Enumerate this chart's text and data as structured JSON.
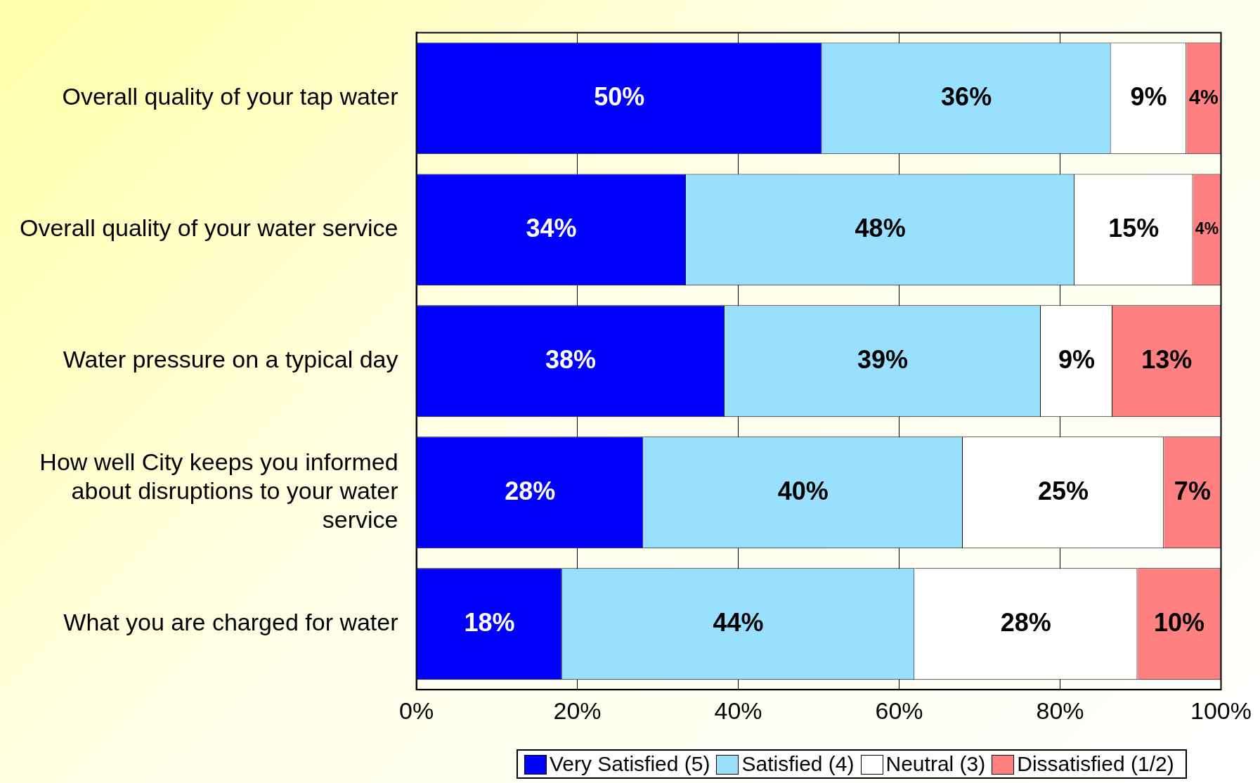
{
  "chart_data": {
    "type": "bar",
    "orientation": "horizontal",
    "stacked": true,
    "categories": [
      "Overall quality of your tap water",
      "Overall quality of your water service",
      "Water pressure on a typical day",
      "How well City keeps you informed about disruptions to your water service",
      "What you are charged for water"
    ],
    "series": [
      {
        "name": "Very Satisfied (5)",
        "color": "#0000ff",
        "values": [
          50.4,
          33.5,
          38.3,
          28.2,
          18.1
        ],
        "value_labels": [
          "50%",
          "34%",
          "38%",
          "28%",
          "18%"
        ]
      },
      {
        "name": "Satisfied (4)",
        "color": "#99e0ff",
        "values": [
          35.9,
          48.3,
          39.3,
          39.7,
          43.8
        ],
        "value_labels": [
          "36%",
          "48%",
          "39%",
          "40%",
          "44%"
        ]
      },
      {
        "name": "Neutral (3)",
        "color": "#ffffff",
        "values": [
          9.4,
          14.7,
          8.9,
          25.0,
          27.7
        ],
        "value_labels": [
          "9%",
          "15%",
          "9%",
          "25%",
          "28%"
        ]
      },
      {
        "name": "Dissatisfied (1/2)",
        "color": "#ff8080",
        "values": [
          4.3,
          3.5,
          13.5,
          7.1,
          10.4
        ],
        "value_labels": [
          "4%",
          "4%",
          "13%",
          "7%",
          "10%"
        ]
      }
    ],
    "xlim": [
      0,
      100
    ],
    "xticks": [
      {
        "value": 0,
        "label": "0%"
      },
      {
        "value": 20,
        "label": "20%"
      },
      {
        "value": 40,
        "label": "40%"
      },
      {
        "value": 60,
        "label": "60%"
      },
      {
        "value": 80,
        "label": "80%"
      },
      {
        "value": 100,
        "label": "100%"
      }
    ],
    "grid": "x",
    "legend": "bottom"
  }
}
